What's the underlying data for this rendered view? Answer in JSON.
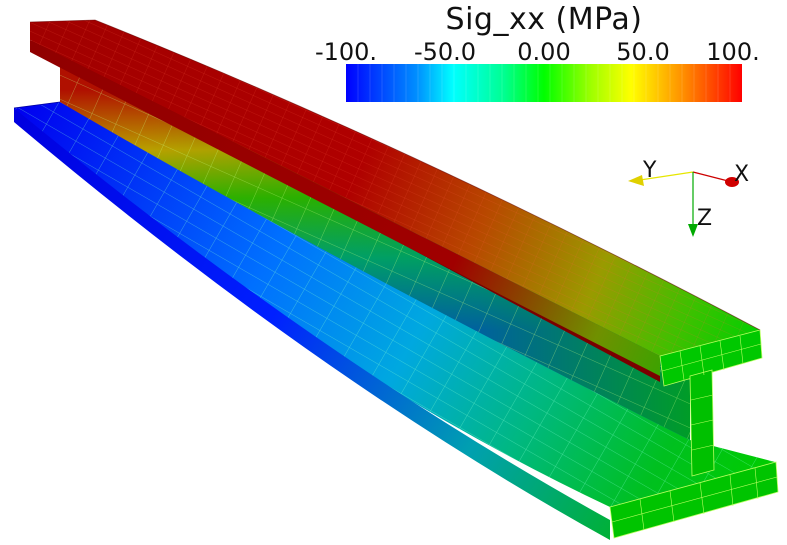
{
  "colorbar": {
    "title": "Sig_xx (MPa)",
    "ticks": [
      "-100.",
      "-50.0",
      "0.00",
      "50.0",
      "100."
    ],
    "min": -100,
    "max": 100,
    "colormap": [
      "#0000ff",
      "#00a0ff",
      "#00ffff",
      "#00ff00",
      "#ffff00",
      "#ff8000",
      "#ff0000"
    ]
  },
  "axes_triad": {
    "x_label": "X",
    "y_label": "Y",
    "z_label": "Z",
    "x_color": "#cc0000",
    "y_color": "#e6e600",
    "z_color": "#00aa00"
  },
  "model": {
    "element": "i-beam-mesh",
    "top_flange_color": "#b40000",
    "bottom_flange_color": "#0000ff",
    "end_color": "#00e600",
    "mesh_line_color": "#c8ff64"
  }
}
